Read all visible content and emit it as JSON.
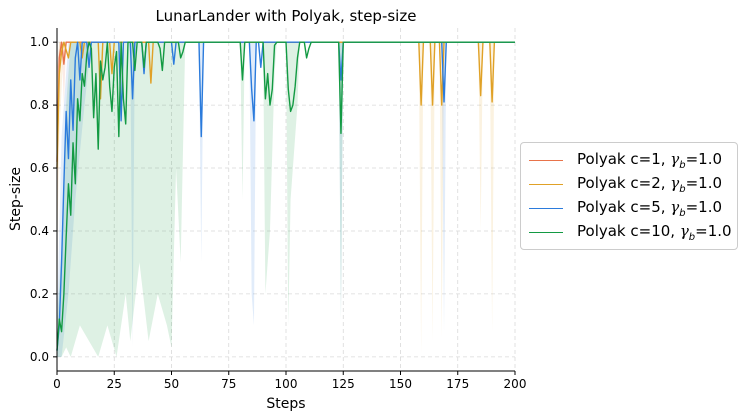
{
  "chart_data": {
    "type": "line",
    "title": "LunarLander with Polyak, step-size",
    "xlabel": "Steps",
    "ylabel": "Step-size",
    "xlim": [
      0,
      200
    ],
    "ylim": [
      -0.045,
      1.045
    ],
    "xticks": [
      0,
      25,
      50,
      75,
      100,
      125,
      150,
      175,
      200
    ],
    "xtick_labels": [
      "0",
      "25",
      "50",
      "75",
      "100",
      "125",
      "150",
      "175",
      "200"
    ],
    "yticks": [
      0.0,
      0.2,
      0.4,
      0.6,
      0.8,
      1.0
    ],
    "ytick_labels": [
      "0.0",
      "0.2",
      "0.4",
      "0.6",
      "0.8",
      "1.0"
    ],
    "grid": true,
    "legend_position": "right",
    "series": [
      {
        "name": "Polyak c=1, γb=1.0",
        "legend_prefix": "Polyak c=1, ",
        "legend_suffix": "=1.0",
        "color": "#e8734a",
        "points": [
          [
            0,
            0.62
          ],
          [
            1,
            0.95
          ],
          [
            2,
            1.0
          ],
          [
            3,
            0.93
          ],
          [
            4,
            1.0
          ],
          [
            200,
            1.0
          ]
        ],
        "band": [
          [
            0,
            0.35,
            0.9
          ],
          [
            1,
            0.85,
            1.0
          ],
          [
            2,
            1.0,
            1.0
          ],
          [
            3,
            0.8,
            1.0
          ],
          [
            4,
            1.0,
            1.0
          ],
          [
            200,
            1.0,
            1.0
          ]
        ]
      },
      {
        "name": "Polyak c=2, γb=1.0",
        "legend_prefix": "Polyak c=2, ",
        "legend_suffix": "=1.0",
        "color": "#e0a126",
        "points": [
          [
            0,
            0.6
          ],
          [
            1,
            0.9
          ],
          [
            2,
            0.97
          ],
          [
            3,
            1.0
          ],
          [
            5,
            0.95
          ],
          [
            6,
            1.0
          ],
          [
            10,
            1.0
          ],
          [
            11,
            0.95
          ],
          [
            12,
            1.0
          ],
          [
            18,
            1.0
          ],
          [
            19,
            0.82
          ],
          [
            20,
            1.0
          ],
          [
            23,
            1.0
          ],
          [
            24,
            0.9
          ],
          [
            25,
            1.0
          ],
          [
            40,
            1.0
          ],
          [
            41,
            0.87
          ],
          [
            42,
            1.0
          ],
          [
            158,
            1.0
          ],
          [
            159,
            0.8
          ],
          [
            160,
            1.0
          ],
          [
            163,
            1.0
          ],
          [
            164,
            0.8
          ],
          [
            165,
            1.0
          ],
          [
            167,
            1.0
          ],
          [
            168,
            0.8
          ],
          [
            169,
            1.0
          ],
          [
            184,
            1.0
          ],
          [
            185,
            0.83
          ],
          [
            186,
            1.0
          ],
          [
            189,
            1.0
          ],
          [
            190,
            0.81
          ],
          [
            191,
            1.0
          ],
          [
            200,
            1.0
          ]
        ],
        "band": [
          [
            0,
            0.3,
            0.9
          ],
          [
            1,
            0.7,
            1.0
          ],
          [
            3,
            1.0,
            1.0
          ],
          [
            158,
            1.0,
            1.0
          ],
          [
            159,
            0.01,
            1.0
          ],
          [
            160,
            1.0,
            1.0
          ],
          [
            163,
            1.0,
            1.0
          ],
          [
            164,
            0.05,
            1.0
          ],
          [
            165,
            1.0,
            1.0
          ],
          [
            167,
            1.0,
            1.0
          ],
          [
            168,
            0.06,
            1.0
          ],
          [
            169,
            1.0,
            1.0
          ],
          [
            184,
            1.0,
            1.0
          ],
          [
            185,
            0.4,
            1.0
          ],
          [
            186,
            1.0,
            1.0
          ],
          [
            189,
            1.0,
            1.0
          ],
          [
            190,
            0.08,
            1.0
          ],
          [
            191,
            1.0,
            1.0
          ],
          [
            200,
            1.0,
            1.0
          ]
        ]
      },
      {
        "name": "Polyak c=5, γb=1.0",
        "legend_prefix": "Polyak c=5, ",
        "legend_suffix": "=1.0",
        "color": "#2b7bdc",
        "points": [
          [
            0,
            0.02
          ],
          [
            1,
            0.1
          ],
          [
            2,
            0.3
          ],
          [
            3,
            0.55
          ],
          [
            4,
            0.78
          ],
          [
            5,
            0.63
          ],
          [
            6,
            0.88
          ],
          [
            7,
            0.72
          ],
          [
            8,
            0.95
          ],
          [
            9,
            1.0
          ],
          [
            10,
            0.88
          ],
          [
            11,
            1.0
          ],
          [
            13,
            1.0
          ],
          [
            14,
            0.92
          ],
          [
            15,
            1.0
          ],
          [
            27,
            1.0
          ],
          [
            28,
            0.75
          ],
          [
            29,
            1.0
          ],
          [
            32,
            1.0
          ],
          [
            33,
            0.82
          ],
          [
            34,
            1.0
          ],
          [
            37,
            1.0
          ],
          [
            38,
            0.9
          ],
          [
            39,
            1.0
          ],
          [
            50,
            1.0
          ],
          [
            51,
            0.93
          ],
          [
            52,
            1.0
          ],
          [
            62,
            1.0
          ],
          [
            63,
            0.7
          ],
          [
            64,
            1.0
          ],
          [
            84,
            1.0
          ],
          [
            85,
            0.85
          ],
          [
            86,
            0.75
          ],
          [
            87,
            1.0
          ],
          [
            88,
            1.0
          ],
          [
            89,
            0.92
          ],
          [
            90,
            1.0
          ],
          [
            123,
            1.0
          ],
          [
            124,
            0.88
          ],
          [
            125,
            1.0
          ],
          [
            168,
            1.0
          ],
          [
            169,
            0.81
          ],
          [
            170,
            1.0
          ],
          [
            200,
            1.0
          ]
        ],
        "band": [
          [
            0,
            0.0,
            0.1
          ],
          [
            2,
            0.0,
            0.7
          ],
          [
            5,
            0.2,
            1.0
          ],
          [
            8,
            0.5,
            1.0
          ],
          [
            12,
            0.8,
            1.0
          ],
          [
            15,
            1.0,
            1.0
          ],
          [
            32,
            1.0,
            1.0
          ],
          [
            33,
            0.03,
            1.0
          ],
          [
            34,
            1.0,
            1.0
          ],
          [
            62,
            1.0,
            1.0
          ],
          [
            63,
            0.3,
            1.0
          ],
          [
            64,
            1.0,
            1.0
          ],
          [
            84,
            1.0,
            1.0
          ],
          [
            85,
            0.2,
            1.0
          ],
          [
            86,
            0.1,
            1.0
          ],
          [
            87,
            1.0,
            1.0
          ],
          [
            123,
            1.0,
            1.0
          ],
          [
            124,
            0.12,
            1.0
          ],
          [
            125,
            1.0,
            1.0
          ],
          [
            168,
            1.0,
            1.0
          ],
          [
            169,
            0.08,
            1.0
          ],
          [
            170,
            1.0,
            1.0
          ],
          [
            200,
            1.0,
            1.0
          ]
        ]
      },
      {
        "name": "Polyak c=10, γb=1.0",
        "legend_prefix": "Polyak c=10, ",
        "legend_suffix": "=1.0",
        "color": "#139a43",
        "points": [
          [
            0,
            0.02
          ],
          [
            1,
            0.12
          ],
          [
            2,
            0.08
          ],
          [
            3,
            0.2
          ],
          [
            4,
            0.38
          ],
          [
            5,
            0.55
          ],
          [
            6,
            0.45
          ],
          [
            7,
            0.68
          ],
          [
            8,
            0.55
          ],
          [
            9,
            0.82
          ],
          [
            10,
            0.75
          ],
          [
            11,
            0.9
          ],
          [
            12,
            0.86
          ],
          [
            13,
            0.96
          ],
          [
            14,
            1.0
          ],
          [
            15,
            0.98
          ],
          [
            16,
            0.76
          ],
          [
            17,
            0.9
          ],
          [
            18,
            0.66
          ],
          [
            19,
            0.94
          ],
          [
            20,
            0.88
          ],
          [
            21,
            0.92
          ],
          [
            22,
            1.0
          ],
          [
            23,
            0.86
          ],
          [
            24,
            0.78
          ],
          [
            25,
            0.92
          ],
          [
            26,
            0.97
          ],
          [
            27,
            0.7
          ],
          [
            28,
            1.0
          ],
          [
            29,
            0.82
          ],
          [
            30,
            0.74
          ],
          [
            31,
            1.0
          ],
          [
            33,
            1.0
          ],
          [
            34,
            0.91
          ],
          [
            35,
            1.0
          ],
          [
            37,
            1.0
          ],
          [
            38,
            0.92
          ],
          [
            39,
            1.0
          ],
          [
            44,
            1.0
          ],
          [
            45,
            0.98
          ],
          [
            46,
            0.91
          ],
          [
            47,
            1.0
          ],
          [
            53,
            1.0
          ],
          [
            54,
            0.95
          ],
          [
            55,
            0.97
          ],
          [
            56,
            1.0
          ],
          [
            80,
            1.0
          ],
          [
            81,
            0.88
          ],
          [
            82,
            1.0
          ],
          [
            90,
            1.0
          ],
          [
            91,
            0.82
          ],
          [
            92,
            0.9
          ],
          [
            93,
            0.8
          ],
          [
            94,
            0.85
          ],
          [
            95,
            0.99
          ],
          [
            96,
            1.0
          ],
          [
            100,
            1.0
          ],
          [
            101,
            0.85
          ],
          [
            102,
            0.78
          ],
          [
            103,
            0.8
          ],
          [
            104,
            0.86
          ],
          [
            105,
            0.95
          ],
          [
            106,
            1.0
          ],
          [
            108,
            1.0
          ],
          [
            109,
            0.95
          ],
          [
            110,
            0.98
          ],
          [
            111,
            1.0
          ],
          [
            123,
            1.0
          ],
          [
            124,
            0.71
          ],
          [
            125,
            1.0
          ],
          [
            200,
            1.0
          ]
        ],
        "band": [
          [
            0,
            0.0,
            0.1
          ],
          [
            2,
            0.0,
            0.35
          ],
          [
            4,
            0.03,
            0.8
          ],
          [
            6,
            0.0,
            1.0
          ],
          [
            10,
            0.1,
            1.0
          ],
          [
            14,
            0.05,
            1.0
          ],
          [
            18,
            0.0,
            1.0
          ],
          [
            22,
            0.1,
            1.0
          ],
          [
            26,
            0.0,
            1.0
          ],
          [
            30,
            0.2,
            1.0
          ],
          [
            32,
            0.05,
            1.0
          ],
          [
            36,
            0.3,
            1.0
          ],
          [
            40,
            0.05,
            1.0
          ],
          [
            44,
            0.2,
            1.0
          ],
          [
            48,
            0.1,
            1.0
          ],
          [
            50,
            0.03,
            1.0
          ],
          [
            52,
            0.6,
            1.0
          ],
          [
            54,
            0.3,
            1.0
          ],
          [
            56,
            1.0,
            1.0
          ],
          [
            80,
            1.0,
            1.0
          ],
          [
            81,
            0.5,
            1.0
          ],
          [
            82,
            1.0,
            1.0
          ],
          [
            90,
            1.0,
            1.0
          ],
          [
            91,
            0.2,
            1.0
          ],
          [
            93,
            0.4,
            1.0
          ],
          [
            95,
            0.9,
            1.0
          ],
          [
            96,
            1.0,
            1.0
          ],
          [
            100,
            1.0,
            1.0
          ],
          [
            101,
            0.1,
            1.0
          ],
          [
            102,
            0.5,
            1.0
          ],
          [
            105,
            0.8,
            1.0
          ],
          [
            106,
            1.0,
            1.0
          ],
          [
            123,
            1.0,
            1.0
          ],
          [
            124,
            0.12,
            1.0
          ],
          [
            125,
            1.0,
            1.0
          ],
          [
            200,
            1.0,
            1.0
          ]
        ]
      }
    ]
  }
}
